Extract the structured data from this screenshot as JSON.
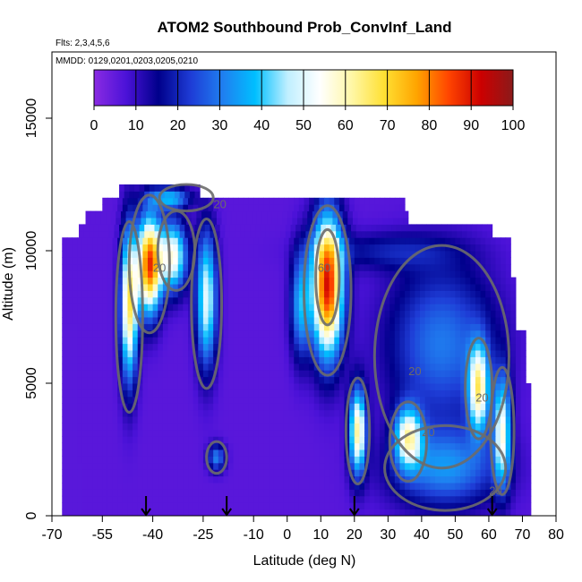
{
  "chart_data": {
    "type": "heatmap",
    "title": "ATOM2 Southbound Prob_ConvInf_Land",
    "subtitle": "Flts: 2,3,4,5,6",
    "annotation": "MMDD: 0129,0201,0203,0205,0210",
    "xlabel": "Latitude (deg N)",
    "ylabel": "Altitude (m)",
    "xlim": [
      -70,
      80
    ],
    "ylim": [
      0,
      17500
    ],
    "x_ticks": [
      -70,
      -55,
      -40,
      -25,
      -10,
      0,
      10,
      20,
      30,
      40,
      50,
      60,
      70,
      80
    ],
    "y_ticks": [
      0,
      5000,
      10000,
      15000
    ],
    "colorbar": {
      "min": 0,
      "max": 100,
      "ticks": [
        0,
        10,
        20,
        30,
        40,
        50,
        60,
        70,
        80,
        90,
        100
      ],
      "colors": [
        "#8a2be2",
        "#4b12d8",
        "#00008b",
        "#1e3cd6",
        "#1f7ff0",
        "#00bfff",
        "#bfefff",
        "#ffffff",
        "#fff7a6",
        "#ffe033",
        "#ffa500",
        "#ff4500",
        "#cc0000",
        "#8b1a1a"
      ]
    },
    "contour_labels": [
      "20",
      "20",
      "20",
      "60",
      "20",
      "20",
      "20"
    ],
    "flight_markers_lat": [
      -42,
      -18,
      20,
      61
    ],
    "data_extent": {
      "lat": [
        -67,
        72
      ],
      "alt": [
        0,
        12500
      ]
    },
    "grid": false
  }
}
